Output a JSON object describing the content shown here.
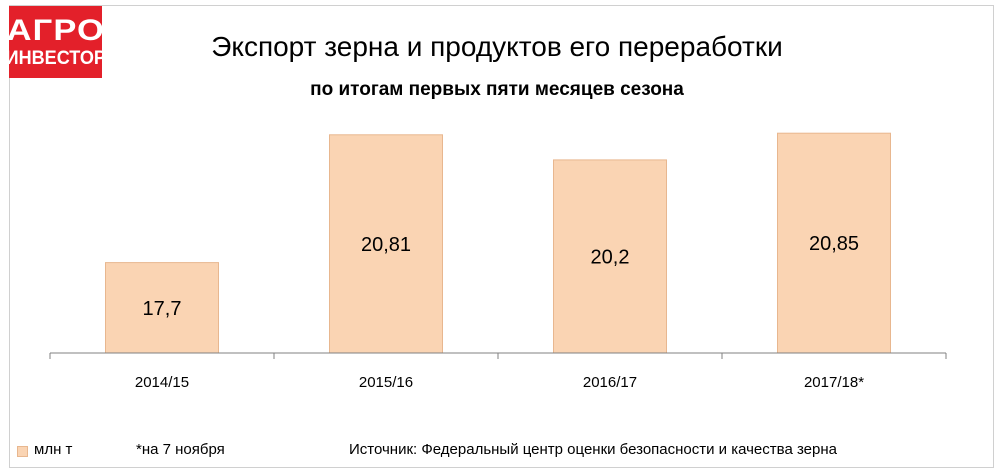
{
  "logo": {
    "line1": "АГРО",
    "line2": "ИНВЕСТОР"
  },
  "header": {
    "title": "Экспорт зерна и продуктов его переработки",
    "subtitle": "по итогам первых пяти месяцев сезона"
  },
  "footer": {
    "legend_label": "млн т",
    "note": "*на 7 ноября",
    "source": "Источник: Федеральный центр оценки безопасности и качества зерна"
  },
  "colors": {
    "bar_fill": "#fad4b3",
    "bar_stroke": "#e8b78f",
    "axis": "#808080",
    "logo_bg": "#e3202a"
  },
  "chart_data": {
    "type": "bar",
    "title": "Экспорт зерна и продуктов его переработки",
    "subtitle": "по итогам первых пяти месяцев сезона",
    "categories": [
      "2014/15",
      "2015/16",
      "2016/17",
      "2017/18*"
    ],
    "series": [
      {
        "name": "млн т",
        "values": [
          17.7,
          20.81,
          20.2,
          20.85
        ],
        "labels": [
          "17,7",
          "20,81",
          "20,2",
          "20,85"
        ]
      }
    ],
    "ylim": [
      15.5,
      21.0
    ],
    "grid": false,
    "legend": "bottom-left"
  }
}
